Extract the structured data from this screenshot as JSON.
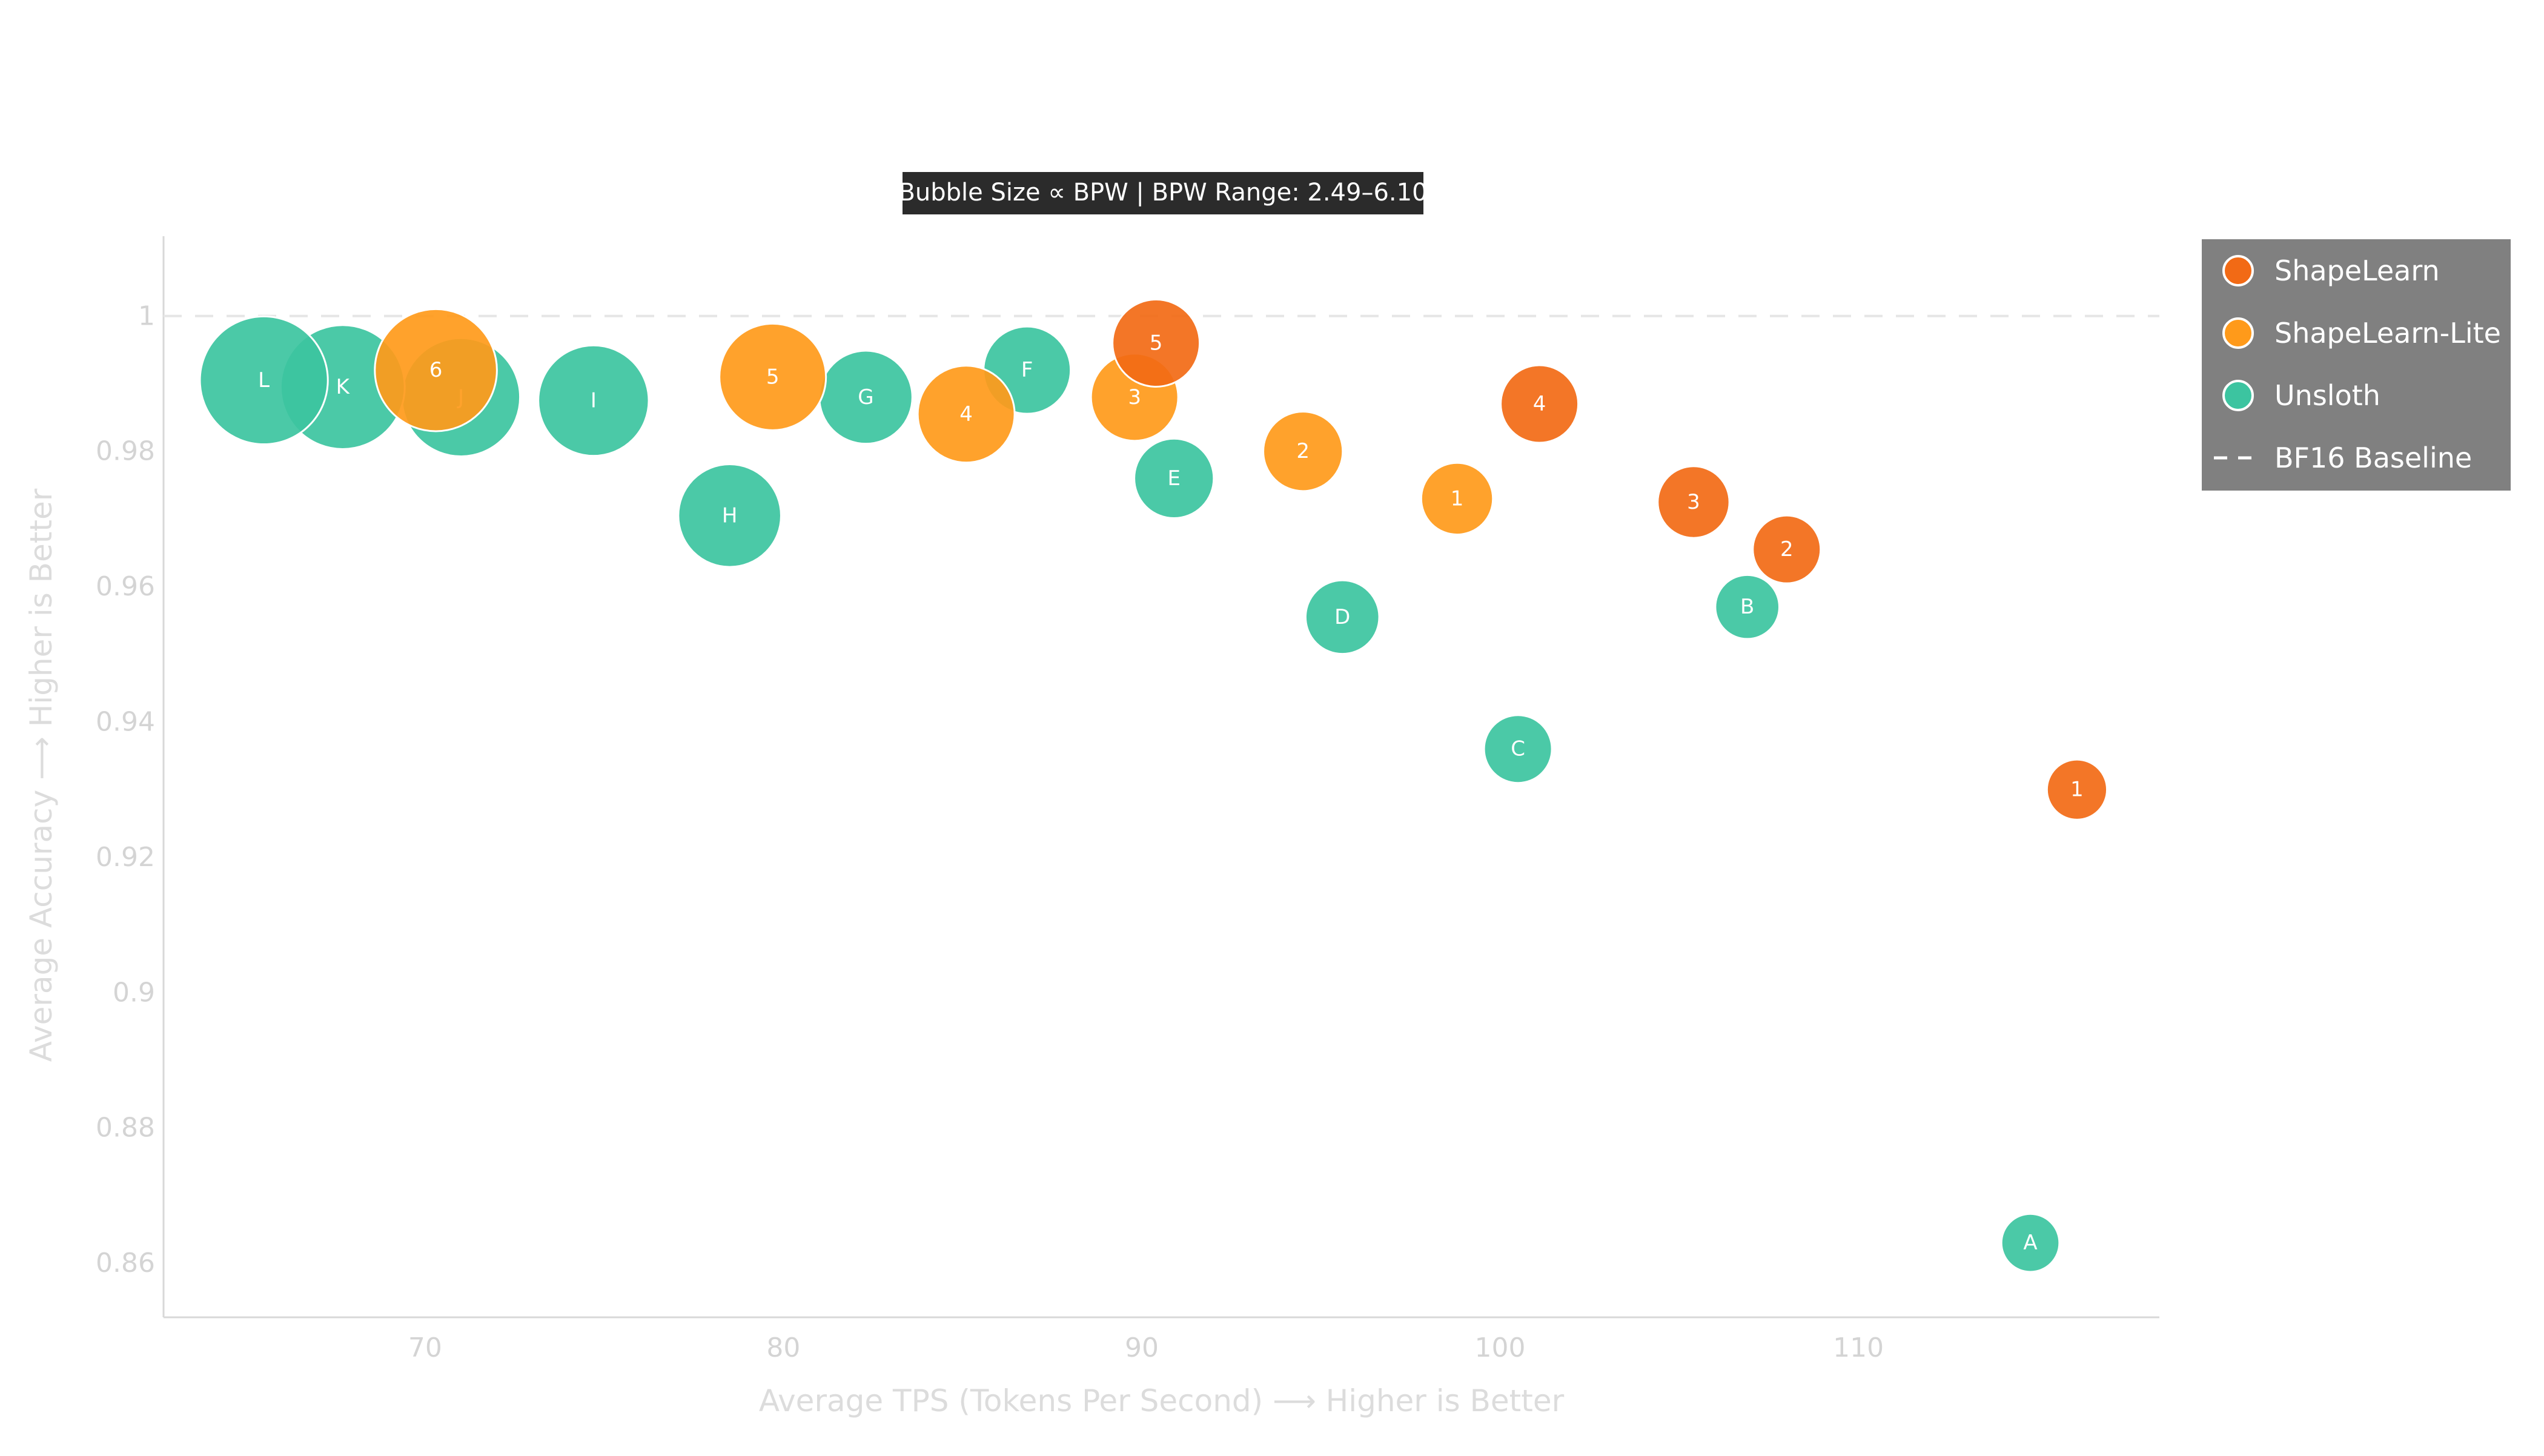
{
  "chart_data": {
    "type": "scatter",
    "title": "Bubble Size ∝ BPW | BPW Range: 2.49–6.10",
    "xlabel": "Average TPS (Tokens Per Second) ⟶ Higher is Better",
    "ylabel": "Average Accuracy ⟶ Higher is Better",
    "xlim": [
      62.7,
      118.4
    ],
    "ylim": [
      0.852,
      1.0118
    ],
    "x_ticks": [
      70,
      80,
      90,
      100,
      110
    ],
    "y_ticks": [
      0.86,
      0.88,
      0.9,
      0.92,
      0.94,
      0.96,
      0.98,
      1
    ],
    "grid": false,
    "legend_position": "top-right",
    "baseline": {
      "name": "BF16 Baseline",
      "y": 1.0
    },
    "series": [
      {
        "name": "Unsloth",
        "color": "#3cc4a0",
        "points": [
          {
            "label": "A",
            "x": 114.8,
            "y": 0.863,
            "bpw": 2.49
          },
          {
            "label": "B",
            "x": 106.9,
            "y": 0.957,
            "bpw": 2.8
          },
          {
            "label": "C",
            "x": 100.5,
            "y": 0.936,
            "bpw": 3.0
          },
          {
            "label": "D",
            "x": 95.6,
            "y": 0.9555,
            "bpw": 3.3
          },
          {
            "label": "E",
            "x": 90.9,
            "y": 0.976,
            "bpw": 3.6
          },
          {
            "label": "F",
            "x": 86.8,
            "y": 0.992,
            "bpw": 4.0
          },
          {
            "label": "G",
            "x": 82.3,
            "y": 0.988,
            "bpw": 4.3
          },
          {
            "label": "H",
            "x": 78.5,
            "y": 0.9705,
            "bpw": 4.8
          },
          {
            "label": "I",
            "x": 74.7,
            "y": 0.9875,
            "bpw": 5.2
          },
          {
            "label": "J",
            "x": 71.0,
            "y": 0.988,
            "bpw": 5.6
          },
          {
            "label": "K",
            "x": 67.7,
            "y": 0.9895,
            "bpw": 5.9
          },
          {
            "label": "L",
            "x": 65.5,
            "y": 0.9905,
            "bpw": 6.1
          }
        ]
      },
      {
        "name": "ShapeLearn-Lite",
        "color": "#ff9a1a",
        "points": [
          {
            "label": "1",
            "x": 98.8,
            "y": 0.973,
            "bpw": 3.2
          },
          {
            "label": "2",
            "x": 94.5,
            "y": 0.98,
            "bpw": 3.6
          },
          {
            "label": "3",
            "x": 89.8,
            "y": 0.988,
            "bpw": 4.0
          },
          {
            "label": "4",
            "x": 85.1,
            "y": 0.9855,
            "bpw": 4.5
          },
          {
            "label": "5",
            "x": 79.7,
            "y": 0.991,
            "bpw": 5.0
          },
          {
            "label": "6",
            "x": 70.3,
            "y": 0.992,
            "bpw": 5.8
          }
        ]
      },
      {
        "name": "ShapeLearn",
        "color": "#f26a15",
        "points": [
          {
            "label": "1",
            "x": 116.1,
            "y": 0.93,
            "bpw": 2.6
          },
          {
            "label": "2",
            "x": 108.0,
            "y": 0.9655,
            "bpw": 3.0
          },
          {
            "label": "3",
            "x": 105.4,
            "y": 0.9725,
            "bpw": 3.2
          },
          {
            "label": "4",
            "x": 101.1,
            "y": 0.987,
            "bpw": 3.5
          },
          {
            "label": "5",
            "x": 90.4,
            "y": 0.996,
            "bpw": 4.0
          }
        ]
      }
    ],
    "legend": [
      {
        "name": "ShapeLearn",
        "color": "#f26a15",
        "kind": "circle"
      },
      {
        "name": "ShapeLearn-Lite",
        "color": "#ff9a1a",
        "kind": "circle"
      },
      {
        "name": "Unsloth",
        "color": "#3cc4a0",
        "kind": "circle"
      },
      {
        "name": "BF16 Baseline",
        "color": "#ffffff",
        "kind": "dash"
      }
    ]
  }
}
